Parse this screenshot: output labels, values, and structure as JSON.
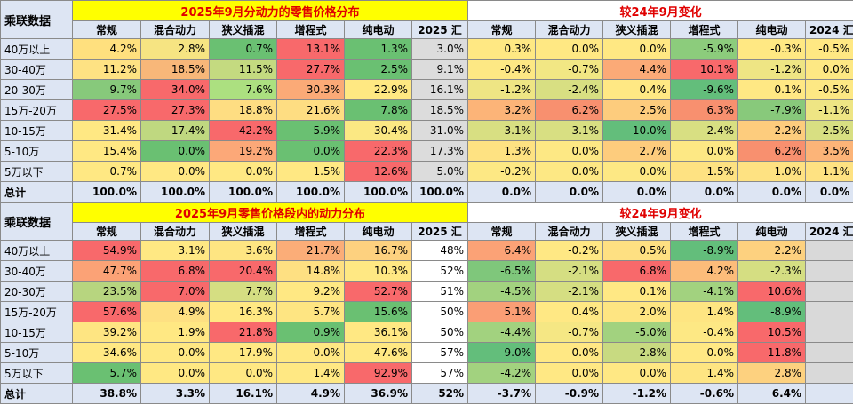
{
  "table1": {
    "corner": "乘联数据",
    "left_title": "2025年9月分动力的零售价格分布",
    "right_title": "较24年9月变化",
    "headers": [
      "常规",
      "混合动力",
      "狭义插混",
      "增程式",
      "纯电动",
      "2025 汇",
      "常规",
      "混合动力",
      "狭义插混",
      "增程式",
      "纯电动",
      "2024 汇"
    ],
    "rows": [
      {
        "label": "40万以上",
        "values": [
          "4.2%",
          "2.8%",
          "0.7%",
          "13.1%",
          "1.3%",
          "3.0%",
          "0.3%",
          "0.0%",
          "0.0%",
          "-5.9%",
          "-0.3%",
          "-0.5%"
        ],
        "colors": [
          "#ffe07e",
          "#f6e482",
          "#6ac072",
          "#f8696b",
          "#6ac072",
          "#dcdcdc",
          "#ffe883",
          "#ffe883",
          "#ffe883",
          "#8ccc7c",
          "#ffe883",
          "#ffe883"
        ]
      },
      {
        "label": "30-40万",
        "values": [
          "11.2%",
          "18.5%",
          "11.5%",
          "27.7%",
          "2.5%",
          "9.1%",
          "-0.4%",
          "-0.7%",
          "4.4%",
          "10.1%",
          "-1.2%",
          "0.0%"
        ],
        "colors": [
          "#fee283",
          "#f8b779",
          "#c4da80",
          "#f8696b",
          "#6ac072",
          "#dcdcdc",
          "#fde884",
          "#f2e784",
          "#fbaa77",
          "#f8696b",
          "#eee584",
          "#fde884"
        ]
      },
      {
        "label": "20-30万",
        "values": [
          "9.7%",
          "34.0%",
          "7.6%",
          "30.3%",
          "22.9%",
          "16.1%",
          "-1.2%",
          "-2.4%",
          "0.4%",
          "-9.6%",
          "0.1%",
          "-0.5%"
        ],
        "colors": [
          "#87c97b",
          "#f8696b",
          "#ace080",
          "#fbaa77",
          "#ffe882",
          "#dcdcdc",
          "#eee584",
          "#d8df82",
          "#ffe884",
          "#63be7b",
          "#ffe884",
          "#fde884"
        ]
      },
      {
        "label": "15万-20万",
        "values": [
          "27.5%",
          "27.3%",
          "18.8%",
          "21.6%",
          "7.8%",
          "18.5%",
          "3.2%",
          "6.2%",
          "2.5%",
          "6.3%",
          "-7.9%",
          "-1.1%"
        ],
        "colors": [
          "#f8696b",
          "#f8696b",
          "#fedd82",
          "#fedd82",
          "#6ac072",
          "#dcdcdc",
          "#fcb478",
          "#f8906f",
          "#fdcc7d",
          "#f8906f",
          "#88c97b",
          "#eee584"
        ]
      },
      {
        "label": "10-15万",
        "values": [
          "31.4%",
          "17.4%",
          "42.2%",
          "5.9%",
          "30.4%",
          "31.0%",
          "-3.1%",
          "-3.1%",
          "-10.0%",
          "-2.4%",
          "2.2%",
          "-2.5%"
        ],
        "colors": [
          "#ffe883",
          "#bfd880",
          "#f8696b",
          "#6ac072",
          "#fbe883",
          "#dcdcdc",
          "#d8df82",
          "#d8df82",
          "#63be7b",
          "#d8df82",
          "#fdcc7d",
          "#d8df82"
        ]
      },
      {
        "label": "5-10万",
        "values": [
          "15.4%",
          "0.0%",
          "19.2%",
          "0.0%",
          "22.3%",
          "17.3%",
          "1.3%",
          "0.0%",
          "2.7%",
          "0.0%",
          "6.2%",
          "3.5%"
        ],
        "colors": [
          "#ffe883",
          "#6ac072",
          "#fca878",
          "#6ac072",
          "#f8696b",
          "#dcdcdc",
          "#fee282",
          "#fde884",
          "#fdcc7d",
          "#fde884",
          "#f8906f",
          "#fcb478"
        ]
      },
      {
        "label": "5万以下",
        "values": [
          "0.7%",
          "0.0%",
          "0.0%",
          "1.5%",
          "12.6%",
          "5.0%",
          "-0.2%",
          "0.0%",
          "0.0%",
          "1.5%",
          "1.0%",
          "1.1%"
        ],
        "colors": [
          "#ffe883",
          "#ffe883",
          "#ffe883",
          "#ffe883",
          "#f8696b",
          "#dcdcdc",
          "#fde884",
          "#fde884",
          "#fde884",
          "#fee282",
          "#fee282",
          "#fee282"
        ]
      }
    ],
    "total": {
      "label": "总计",
      "values": [
        "100.0%",
        "100.0%",
        "100.0%",
        "100.0%",
        "100.0%",
        "100.0%",
        "0.0%",
        "0.0%",
        "0.0%",
        "0.0%",
        "0.0%",
        "0.0%"
      ]
    }
  },
  "table2": {
    "corner": "乘联数据",
    "left_title": "2025年9月零售价格段内的动力分布",
    "right_title": "较24年9月变化",
    "headers": [
      "常规",
      "混合动力",
      "狭义插混",
      "增程式",
      "纯电动",
      "2025 汇",
      "常规",
      "混合动力",
      "狭义插混",
      "增程式",
      "纯电动",
      "2024 汇"
    ],
    "rows": [
      {
        "label": "40万以上",
        "values": [
          "54.9%",
          "3.1%",
          "3.6%",
          "21.7%",
          "16.7%",
          "48%",
          "6.4%",
          "-0.2%",
          "0.5%",
          "-8.9%",
          "2.2%",
          ""
        ],
        "colors": [
          "#f8696b",
          "#ffe883",
          "#fee582",
          "#fbad78",
          "#fdd17f",
          "#ffffff",
          "#fba276",
          "#ffe884",
          "#fee082",
          "#63be7b",
          "#fdd17f",
          "#d9d9d9"
        ]
      },
      {
        "label": "30-40万",
        "values": [
          "47.7%",
          "6.8%",
          "20.4%",
          "14.8%",
          "10.3%",
          "52%",
          "-6.5%",
          "-2.1%",
          "6.8%",
          "4.2%",
          "-2.3%",
          ""
        ],
        "colors": [
          "#fba276",
          "#f8696b",
          "#f8696b",
          "#fee082",
          "#ffe883",
          "#ffffff",
          "#7fc77b",
          "#d5de82",
          "#f8696b",
          "#fcbc7a",
          "#d5de82",
          "#d9d9d9"
        ]
      },
      {
        "label": "20-30万",
        "values": [
          "23.5%",
          "7.0%",
          "7.7%",
          "9.2%",
          "52.7%",
          "51%",
          "-4.5%",
          "-2.1%",
          "0.1%",
          "-4.1%",
          "10.6%",
          ""
        ],
        "colors": [
          "#b7d57f",
          "#f8696b",
          "#d5de82",
          "#ffe883",
          "#f8696b",
          "#ffffff",
          "#a2d27f",
          "#d5de82",
          "#ffe884",
          "#a2d27f",
          "#f8696b",
          "#d9d9d9"
        ]
      },
      {
        "label": "15万-20万",
        "values": [
          "57.6%",
          "4.9%",
          "16.3%",
          "5.7%",
          "15.6%",
          "50%",
          "5.1%",
          "0.4%",
          "2.0%",
          "1.4%",
          "-8.9%",
          ""
        ],
        "colors": [
          "#f8696b",
          "#fee082",
          "#ffe883",
          "#fee582",
          "#6ac072",
          "#ffffff",
          "#fa9e75",
          "#ffe884",
          "#fee582",
          "#fee582",
          "#63be7b",
          "#d9d9d9"
        ]
      },
      {
        "label": "10-15万",
        "values": [
          "39.2%",
          "1.9%",
          "21.8%",
          "0.9%",
          "36.1%",
          "50%",
          "-4.4%",
          "-0.7%",
          "-5.0%",
          "-0.4%",
          "10.5%",
          ""
        ],
        "colors": [
          "#fee582",
          "#ffe883",
          "#f8696b",
          "#6ac072",
          "#ffe883",
          "#ffffff",
          "#a2d27f",
          "#f5e784",
          "#a2d27f",
          "#fde884",
          "#f8696b",
          "#d9d9d9"
        ]
      },
      {
        "label": "5-10万",
        "values": [
          "34.6%",
          "0.0%",
          "17.9%",
          "0.0%",
          "47.6%",
          "57%",
          "-9.0%",
          "0.0%",
          "-2.8%",
          "0.0%",
          "11.8%",
          ""
        ],
        "colors": [
          "#ffe883",
          "#ffe883",
          "#ffe883",
          "#ffe883",
          "#ffe883",
          "#ffffff",
          "#63be7b",
          "#ffe884",
          "#c8da81",
          "#ffe884",
          "#f8696b",
          "#d9d9d9"
        ]
      },
      {
        "label": "5万以下",
        "values": [
          "5.7%",
          "0.0%",
          "0.0%",
          "1.4%",
          "92.9%",
          "57%",
          "-4.2%",
          "0.0%",
          "0.0%",
          "1.4%",
          "2.8%",
          ""
        ],
        "colors": [
          "#6ac072",
          "#ffe883",
          "#ffe883",
          "#ffe883",
          "#f8696b",
          "#ffffff",
          "#a2d27f",
          "#ffe884",
          "#ffe884",
          "#fee582",
          "#fdd17f",
          "#d9d9d9"
        ]
      }
    ],
    "total": {
      "label": "总计",
      "values": [
        "38.8%",
        "3.3%",
        "16.1%",
        "4.9%",
        "36.9%",
        "52%",
        "-3.7%",
        "-0.9%",
        "-1.2%",
        "-0.6%",
        "6.4%",
        ""
      ]
    }
  }
}
